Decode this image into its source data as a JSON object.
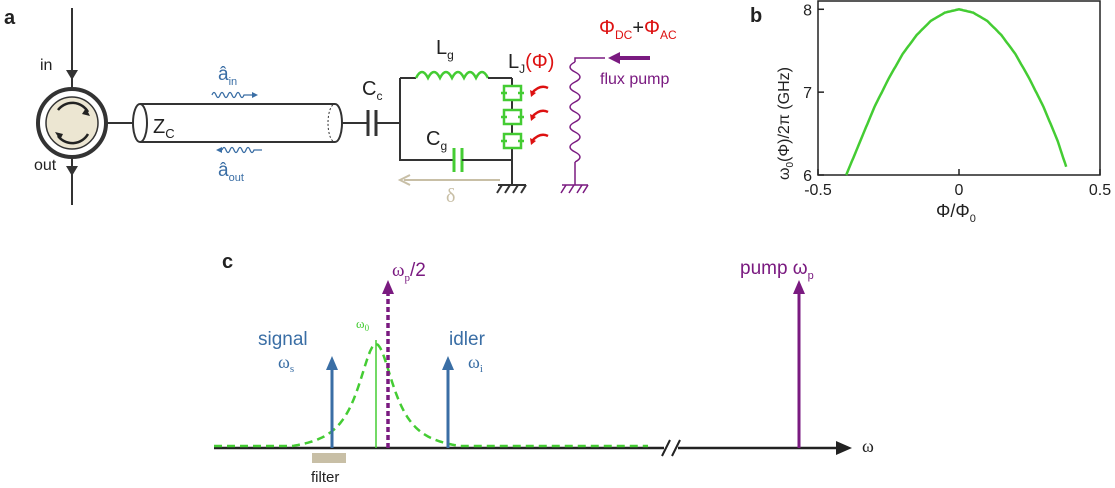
{
  "panel_a": {
    "letter": "a",
    "port_in": "in",
    "port_out": "out",
    "impedance": "Z",
    "impedance_sub": "C",
    "a_in": "â",
    "a_in_sub": "in",
    "a_out": "â",
    "a_out_sub": "out",
    "coupling_cap": "C",
    "coupling_cap_sub": "c",
    "inductor": "L",
    "inductor_sub": "g",
    "josephson": "L",
    "josephson_sub": "J",
    "josephson_arg": "(Φ)",
    "ground_cap": "C",
    "ground_cap_sub": "g",
    "delta": "δ",
    "flux_dc": "Φ",
    "flux_dc_sub": "DC",
    "flux_plus": "+",
    "flux_ac": "Φ",
    "flux_ac_sub": "AC",
    "flux_pump": "flux pump"
  },
  "panel_b": {
    "letter": "b",
    "ylabel_parts": [
      "ω",
      "0",
      "(Φ)/2π (GHz)"
    ],
    "xlabel_parts": [
      "Φ/Φ",
      "0"
    ],
    "color": "#44cc33"
  },
  "panel_c": {
    "letter": "c",
    "signal": "signal",
    "signal_sym": "ω",
    "signal_sub": "s",
    "idler": "idler",
    "idler_sym": "ω",
    "idler_sub": "i",
    "half_pump": "ω",
    "half_pump_sub": "p",
    "half_pump_rest": "/2",
    "resonance": "ω",
    "resonance_sub": "0",
    "pump": "pump ω",
    "pump_sub": "p",
    "axis": "ω",
    "filter": "filter",
    "colors": {
      "blue": "#3a6ea5",
      "purple": "#7a1a80",
      "green": "#44cc33",
      "red": "#dd1111",
      "tan": "#c8bfa6"
    }
  },
  "chart_data": {
    "type": "line",
    "title": "",
    "xlabel": "Φ/Φ0",
    "ylabel": "ω0(Φ)/2π (GHz)",
    "xlim": [
      -0.5,
      0.5
    ],
    "ylim": [
      6,
      8.1
    ],
    "xticks": [
      -0.5,
      0,
      0.5
    ],
    "yticks": [
      6,
      7,
      8
    ],
    "grid": false,
    "series": [
      {
        "x": [
          -0.4,
          -0.35,
          -0.3,
          -0.25,
          -0.2,
          -0.15,
          -0.1,
          -0.05,
          0,
          0.05,
          0.1,
          0.15,
          0.2,
          0.25,
          0.3,
          0.35,
          0.38
        ],
        "values": [
          6.0,
          6.41,
          6.82,
          7.16,
          7.46,
          7.69,
          7.86,
          7.96,
          8.0,
          7.96,
          7.86,
          7.69,
          7.46,
          7.16,
          6.82,
          6.41,
          6.1
        ]
      }
    ]
  }
}
